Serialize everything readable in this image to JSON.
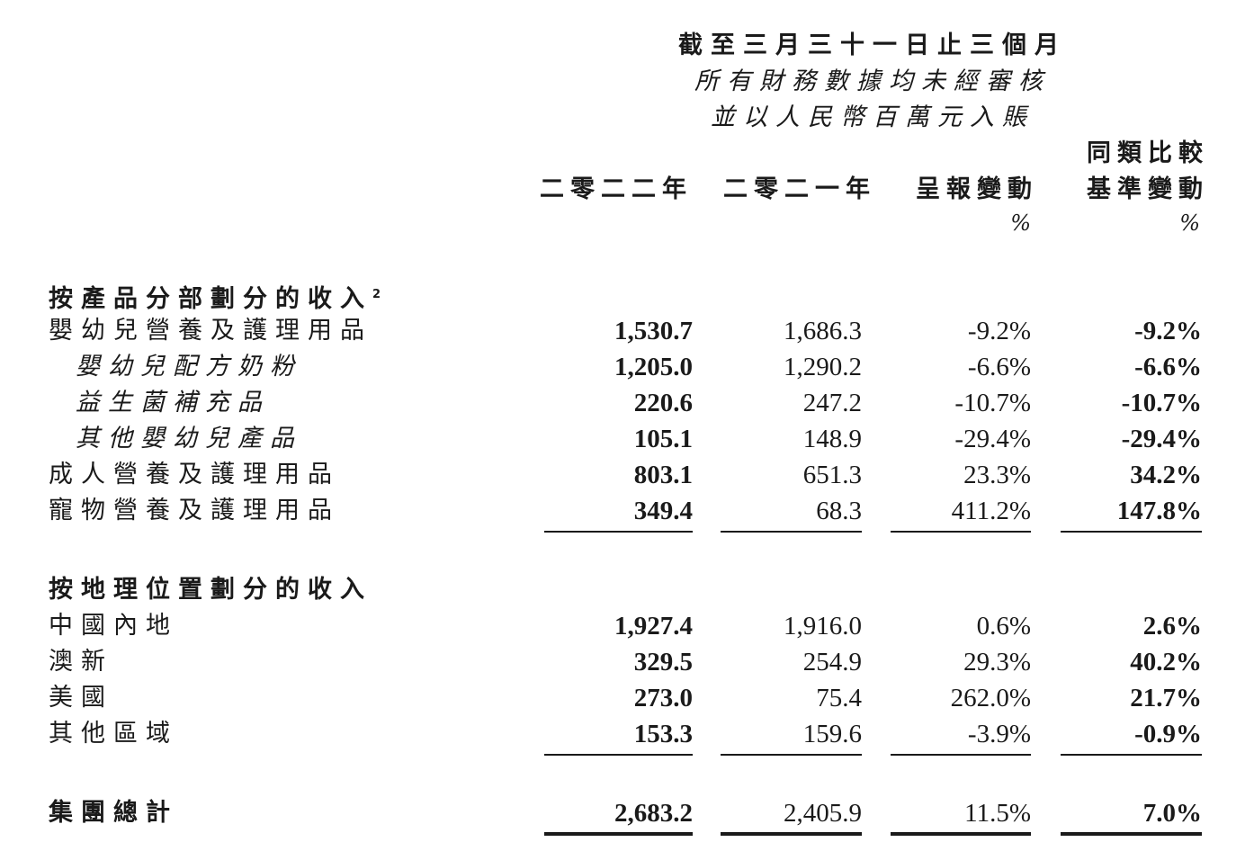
{
  "header": {
    "title": "截至三月三十一日止三個月",
    "subtitle1": "所有財務數據均未經審核",
    "subtitle2": "並以人民幣百萬元入賬",
    "columns": [
      "二零二二年",
      "二零二一年",
      "呈報變動",
      "同類比較基準變動"
    ],
    "col3_line1": "同類比較",
    "col3_line2": "基準變動",
    "pct_unit": "%"
  },
  "sections": [
    {
      "title": "按產品分部劃分的收入",
      "footnote": "2",
      "rows": [
        {
          "label": "嬰幼兒營養及護理用品",
          "level": 1,
          "values": [
            "1,530.7",
            "1,686.3",
            "-9.2%",
            "-9.2%"
          ]
        },
        {
          "label": "嬰幼兒配方奶粉",
          "level": 2,
          "values": [
            "1,205.0",
            "1,290.2",
            "-6.6%",
            "-6.6%"
          ]
        },
        {
          "label": "益生菌補充品",
          "level": 2,
          "values": [
            "220.6",
            "247.2",
            "-10.7%",
            "-10.7%"
          ]
        },
        {
          "label": "其他嬰幼兒產品",
          "level": 2,
          "values": [
            "105.1",
            "148.9",
            "-29.4%",
            "-29.4%"
          ]
        },
        {
          "label": "成人營養及護理用品",
          "level": 1,
          "values": [
            "803.1",
            "651.3",
            "23.3%",
            "34.2%"
          ]
        },
        {
          "label": "寵物營養及護理用品",
          "level": 1,
          "values": [
            "349.4",
            "68.3",
            "411.2%",
            "147.8%"
          ]
        }
      ]
    },
    {
      "title": "按地理位置劃分的收入",
      "footnote": "",
      "rows": [
        {
          "label": "中國內地",
          "level": 1,
          "values": [
            "1,927.4",
            "1,916.0",
            "0.6%",
            "2.6%"
          ]
        },
        {
          "label": "澳新",
          "level": 1,
          "values": [
            "329.5",
            "254.9",
            "29.3%",
            "40.2%"
          ]
        },
        {
          "label": "美國",
          "level": 1,
          "values": [
            "273.0",
            "75.4",
            "262.0%",
            "21.7%"
          ]
        },
        {
          "label": "其他區域",
          "level": 1,
          "values": [
            "153.3",
            "159.6",
            "-3.9%",
            "-0.9%"
          ]
        }
      ]
    }
  ],
  "total": {
    "label": "集團總計",
    "values": [
      "2,683.2",
      "2,405.9",
      "11.5%",
      "7.0%"
    ]
  }
}
